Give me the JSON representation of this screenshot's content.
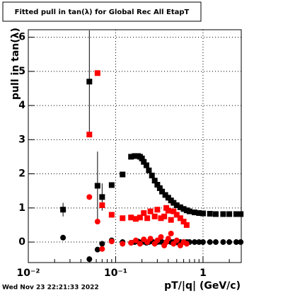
{
  "chart_data": {
    "type": "scatter",
    "title": "Fitted pull in tan(λ) for Global Rec All EtapT",
    "x_label": "pT/|q| (GeV/c)",
    "y_label": "pull in tan(λ)",
    "footer": "Wed Nov 23 22:21:33 2022",
    "xlog": true,
    "grid": true,
    "xlim": [
      0.01,
      2.74
    ],
    "ylim": [
      -0.6,
      6.22
    ],
    "xticks": [
      {
        "value": 0.01,
        "label": "10⁻²"
      },
      {
        "value": 0.1,
        "label": "10⁻¹"
      },
      1
    ],
    "yticks": [
      0,
      1,
      2,
      3,
      4,
      5,
      6
    ],
    "series": [
      {
        "color": "#000000",
        "marker": "square",
        "x": [
          0.025,
          0.05,
          0.062,
          0.07,
          0.09,
          0.12,
          0.15,
          0.165,
          0.18,
          0.19,
          0.2,
          0.21,
          0.225,
          0.24,
          0.26,
          0.28,
          0.3,
          0.32,
          0.34,
          0.37,
          0.4,
          0.43,
          0.46,
          0.5,
          0.55,
          0.6,
          0.65,
          0.7,
          0.8,
          0.9,
          1.0,
          1.2,
          1.4,
          1.7,
          2.0,
          2.4,
          2.7
        ],
        "values": [
          0.95,
          4.7,
          1.65,
          1.32,
          1.67,
          1.98,
          2.5,
          2.52,
          2.52,
          2.5,
          2.45,
          2.35,
          2.25,
          2.1,
          1.95,
          1.8,
          1.68,
          1.58,
          1.48,
          1.38,
          1.3,
          1.22,
          1.15,
          1.08,
          1.02,
          0.97,
          0.93,
          0.9,
          0.87,
          0.85,
          0.84,
          0.83,
          0.82,
          0.82,
          0.82,
          0.82,
          0.82
        ],
        "errors": [
          0.2,
          1.5,
          1.0,
          0.4,
          null,
          null,
          null,
          null,
          null,
          null,
          null,
          null,
          null,
          null,
          null,
          null,
          null,
          null,
          null,
          null,
          null,
          null,
          null,
          null,
          null,
          null,
          null,
          null,
          null,
          null,
          null,
          null,
          null,
          null,
          null,
          null,
          null
        ]
      },
      {
        "color": "#000000",
        "marker": "circle",
        "x": [
          0.025,
          0.05,
          0.062,
          0.07,
          0.09,
          0.12,
          0.15,
          0.165,
          0.18,
          0.19,
          0.2,
          0.21,
          0.225,
          0.24,
          0.26,
          0.28,
          0.3,
          0.32,
          0.34,
          0.37,
          0.4,
          0.43,
          0.46,
          0.5,
          0.55,
          0.6,
          0.65,
          0.7,
          0.8,
          0.9,
          1.0,
          1.2,
          1.4,
          1.7,
          2.0,
          2.4,
          2.7
        ],
        "values": [
          0.13,
          -0.5,
          -0.22,
          -0.05,
          0.05,
          0.0,
          -0.02,
          0,
          0.02,
          -0.01,
          0,
          0.01,
          -0.02,
          0,
          0.02,
          -0.01,
          0,
          0.01,
          0,
          -0.02,
          0.02,
          0,
          0,
          -0.01,
          0,
          0,
          0,
          0,
          0,
          0,
          0,
          0,
          0,
          0,
          0,
          0,
          0
        ]
      },
      {
        "color": "#ff0000",
        "marker": "square",
        "x": [
          0.05,
          0.062,
          0.07,
          0.09,
          0.12,
          0.15,
          0.17,
          0.19,
          0.21,
          0.23,
          0.25,
          0.28,
          0.3,
          0.33,
          0.36,
          0.38,
          0.4,
          0.43,
          0.46,
          0.5,
          0.55,
          0.6,
          0.65
        ],
        "values": [
          3.15,
          4.95,
          1.08,
          0.8,
          0.7,
          0.72,
          0.68,
          0.72,
          0.85,
          0.7,
          0.9,
          0.75,
          0.95,
          0.7,
          0.75,
          1.0,
          0.92,
          0.65,
          0.9,
          0.8,
          0.7,
          0.6,
          0.5
        ]
      },
      {
        "color": "#ff0000",
        "marker": "circle",
        "x": [
          0.05,
          0.062,
          0.07,
          0.09,
          0.12,
          0.15,
          0.17,
          0.19,
          0.21,
          0.23,
          0.25,
          0.28,
          0.3,
          0.33,
          0.36,
          0.38,
          0.4,
          0.43,
          0.46,
          0.5,
          0.55,
          0.6,
          0.65
        ],
        "values": [
          1.32,
          0.6,
          -0.2,
          0.02,
          -0.05,
          -0.02,
          0.05,
          -0.05,
          0.08,
          0.0,
          0.1,
          -0.05,
          0.05,
          0.15,
          -0.1,
          0.0,
          0.1,
          0.25,
          -0.05,
          0.05,
          -0.1,
          0.0,
          -0.05
        ]
      }
    ]
  }
}
